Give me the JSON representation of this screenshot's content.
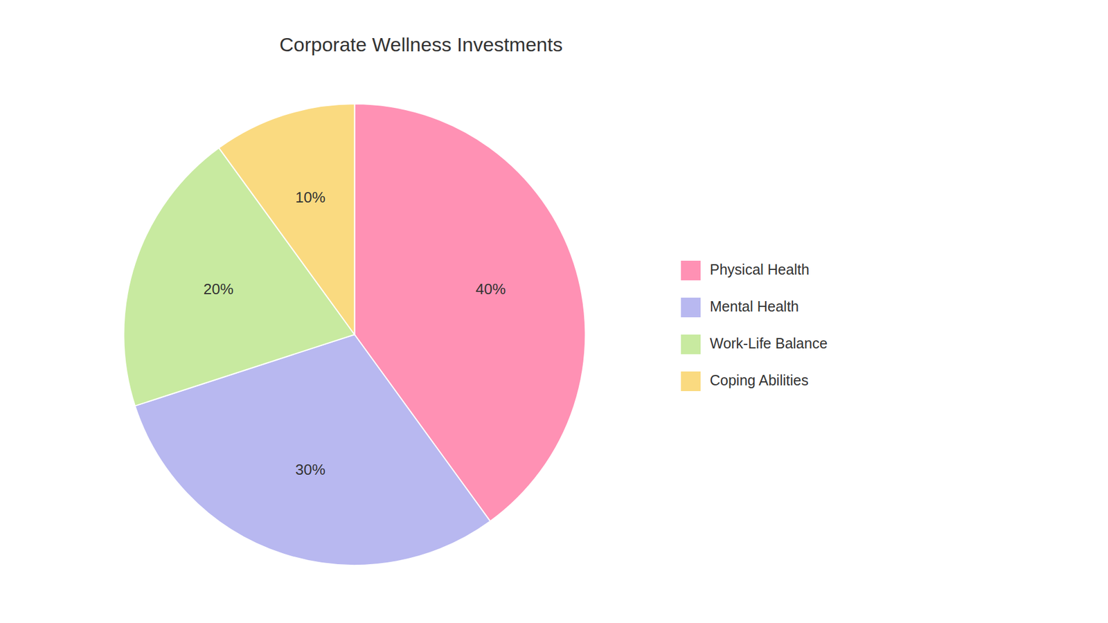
{
  "chart_data": {
    "type": "pie",
    "title": "Corporate Wellness Investments",
    "categories": [
      "Physical Health",
      "Mental Health",
      "Work-Life Balance",
      "Coping Abilities"
    ],
    "values": [
      40,
      30,
      20,
      10
    ],
    "value_labels": [
      "40%",
      "30%",
      "20%",
      "10%"
    ],
    "data_labels": true,
    "colors": [
      "#FF91B4",
      "#B8B8F0",
      "#C8EAA0",
      "#FADA80"
    ],
    "legend": "right"
  }
}
